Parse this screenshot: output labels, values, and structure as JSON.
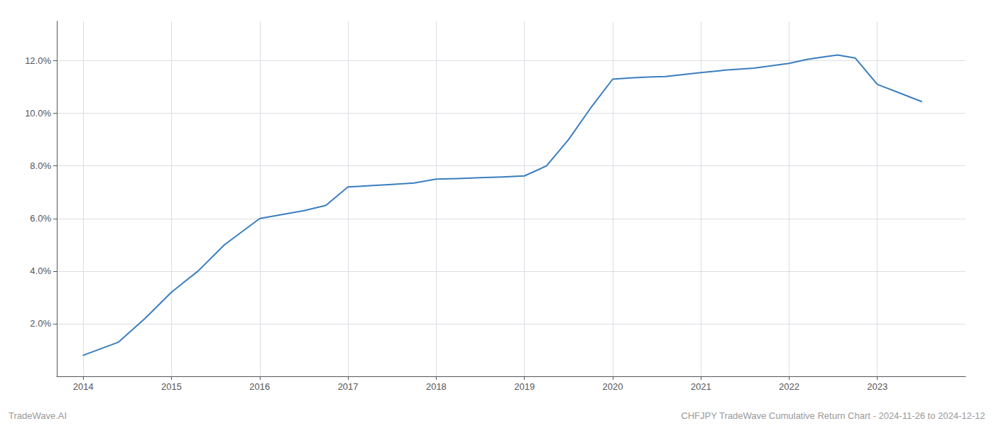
{
  "chart_data": {
    "type": "line",
    "x": [
      2014.0,
      2014.4,
      2014.7,
      2015.0,
      2015.3,
      2015.6,
      2016.0,
      2016.25,
      2016.5,
      2016.75,
      2017.0,
      2017.25,
      2017.5,
      2017.75,
      2018.0,
      2018.25,
      2018.5,
      2018.75,
      2019.0,
      2019.25,
      2019.5,
      2019.75,
      2020.0,
      2020.2,
      2020.4,
      2020.6,
      2021.0,
      2021.3,
      2021.6,
      2022.0,
      2022.2,
      2022.4,
      2022.55,
      2022.75,
      2023.0,
      2023.5
    ],
    "values": [
      0.8,
      1.3,
      2.2,
      3.2,
      4.0,
      5.0,
      6.0,
      6.15,
      6.3,
      6.5,
      7.2,
      7.25,
      7.3,
      7.35,
      7.5,
      7.52,
      7.55,
      7.58,
      7.62,
      8.0,
      9.0,
      10.2,
      11.3,
      11.35,
      11.38,
      11.4,
      11.55,
      11.65,
      11.72,
      11.9,
      12.05,
      12.15,
      12.22,
      12.1,
      11.1,
      10.45
    ],
    "color": "#3a7ebf",
    "xlim": [
      2013.7,
      2024.0
    ],
    "xticks": [
      2014,
      2015,
      2016,
      2017,
      2018,
      2019,
      2020,
      2021,
      2022,
      2023
    ],
    "ylim": [
      0.0,
      13.5
    ],
    "yticks": [
      {
        "value": 2.0,
        "label": "2.0%"
      },
      {
        "value": 4.0,
        "label": "4.0%"
      },
      {
        "value": 6.0,
        "label": "6.0%"
      },
      {
        "value": 8.0,
        "label": "8.0%"
      },
      {
        "value": 10.0,
        "label": "10.0%"
      },
      {
        "value": 12.0,
        "label": "12.0%"
      }
    ],
    "grid": true,
    "annotations": [
      "TradeWave.AI",
      "CHFJPY TradeWave Cumulative Return Chart - 2024-11-26 to 2024-12-12"
    ]
  }
}
